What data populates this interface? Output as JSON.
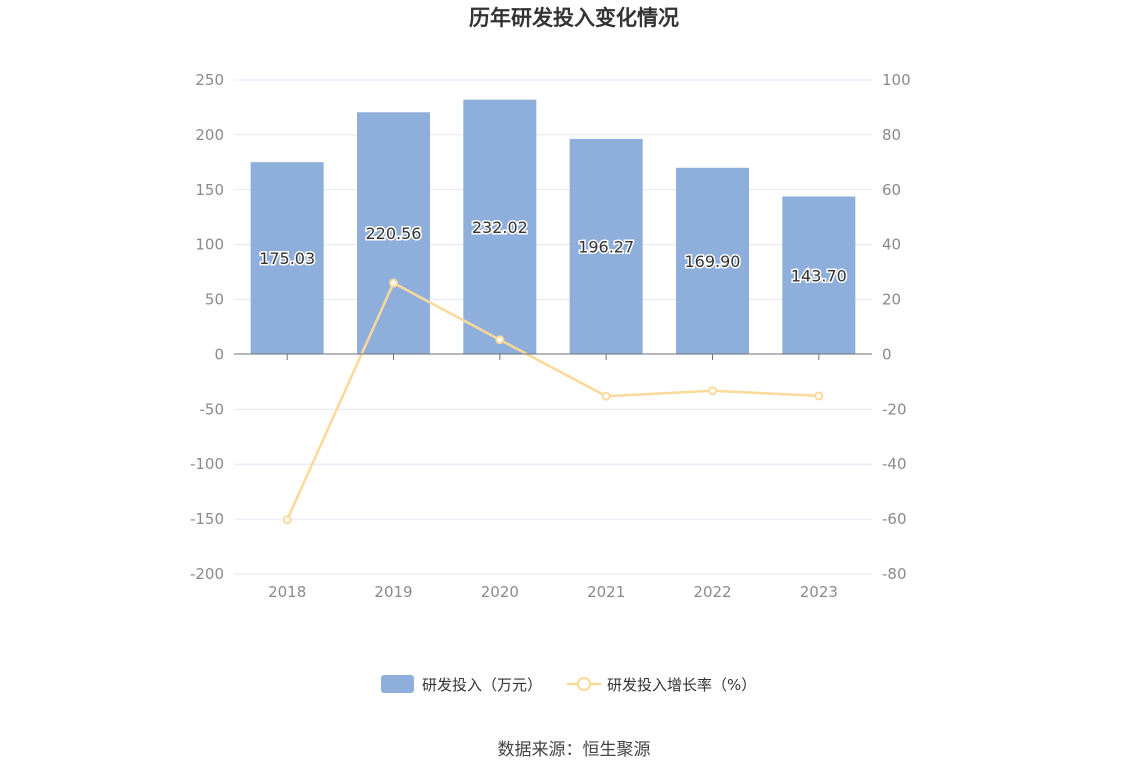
{
  "chart_data": {
    "type": "bar",
    "title": "历年研发投入变化情况",
    "categories": [
      "2018",
      "2019",
      "2020",
      "2021",
      "2022",
      "2023"
    ],
    "series": [
      {
        "name": "研发投入（万元）",
        "type": "bar",
        "axis": "left",
        "color": "#8eaedb",
        "values": [
          175.03,
          220.56,
          232.02,
          196.27,
          169.9,
          143.7
        ],
        "labels": [
          "175.03",
          "220.56",
          "232.02",
          "196.27",
          "169.90",
          "143.70"
        ]
      },
      {
        "name": "研发投入增长率（%）",
        "type": "line",
        "axis": "right",
        "color": "#fbd99a",
        "values": [
          -60.5,
          25.9,
          5.2,
          -15.4,
          -13.4,
          -15.3
        ]
      }
    ],
    "y_left": {
      "min": -200,
      "max": 250,
      "ticks": [
        "250",
        "200",
        "150",
        "100",
        "50",
        "0",
        "-50",
        "-100",
        "-150",
        "-200"
      ]
    },
    "y_right": {
      "min": -80,
      "max": 100,
      "ticks": [
        "100",
        "80",
        "60",
        "40",
        "20",
        "0",
        "-20",
        "-40",
        "-60",
        "-80"
      ]
    },
    "grid": true,
    "legend_position": "bottom"
  },
  "footer": {
    "source": "数据来源：恒生聚源"
  }
}
